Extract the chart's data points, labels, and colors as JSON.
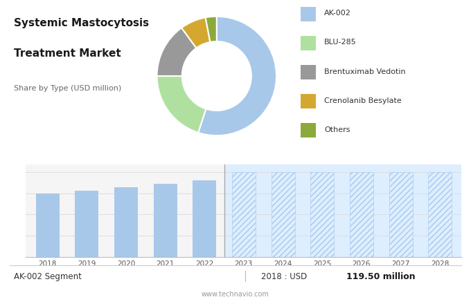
{
  "title_line1": "Systemic Mastocytosis",
  "title_line2": "Treatment Market",
  "subtitle": "Share by Type (USD million)",
  "bg_top": "#e4e4e4",
  "bg_bottom": "#ffffff",
  "pie_colors": [
    "#a8c8ea",
    "#b0e0a0",
    "#999999",
    "#d4a830",
    "#8caa3c"
  ],
  "pie_labels": [
    "AK-002",
    "BLU-285",
    "Brentuximab Vedotin",
    "Crenolanib Besylate",
    "Others"
  ],
  "pie_sizes": [
    55,
    20,
    15,
    7,
    3
  ],
  "bar_years_actual": [
    2018,
    2019,
    2020,
    2021,
    2022
  ],
  "bar_values_actual": [
    119.5,
    125.0,
    131.0,
    138.0,
    145.0
  ],
  "bar_years_forecast": [
    2023,
    2024,
    2025,
    2026,
    2027,
    2028
  ],
  "bar_color_actual": "#a8c8ea",
  "bar_hatch_forecast": "////",
  "segment_label": "AK-002 Segment",
  "year_value_prefix": "2018 : USD ",
  "year_value_bold": "119.50 million",
  "footer": "www.technavio.com",
  "bar_bg": "#f5f5f5",
  "forecast_bg": "#ddeeff",
  "divider_color": "#aaaaaa",
  "grid_color": "#dddddd"
}
